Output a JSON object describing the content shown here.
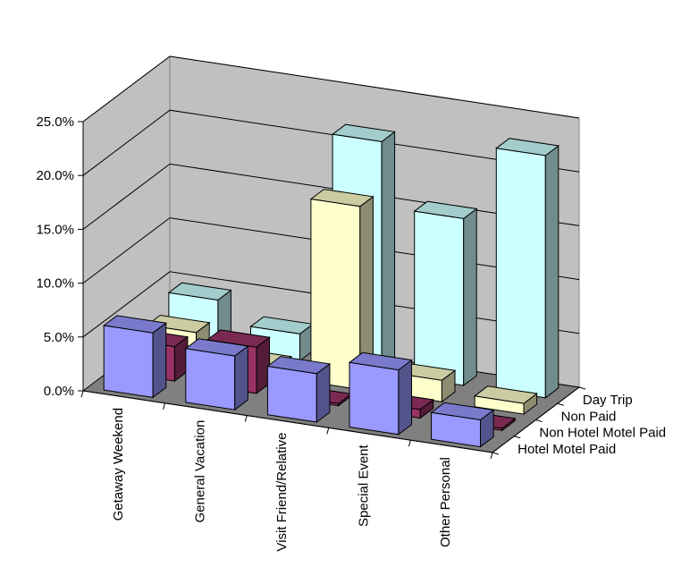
{
  "chart_data": {
    "type": "bar",
    "subtype": "3d-column",
    "categories": [
      "Getaway Weekend",
      "General Vacation",
      "Visit Friend/Relative",
      "Special Event",
      "Other Personal"
    ],
    "series": [
      {
        "name": "Hotel Motel Paid",
        "values": [
          6.0,
          5.0,
          4.5,
          6.0,
          2.5
        ],
        "color": "#9999ff"
      },
      {
        "name": "Non Hotel Motel Paid",
        "values": [
          3.2,
          4.3,
          0.2,
          0.8,
          0.2
        ],
        "color": "#993366"
      },
      {
        "name": "Non Paid",
        "values": [
          3.0,
          1.0,
          17.0,
          2.0,
          1.0
        ],
        "color": "#ffffcc"
      },
      {
        "name": "Day Trip",
        "values": [
          4.5,
          2.5,
          21.5,
          15.5,
          22.5
        ],
        "color": "#ccffff"
      }
    ],
    "y_ticks": [
      "0.0%",
      "5.0%",
      "10.0%",
      "15.0%",
      "20.0%",
      "25.0%"
    ],
    "ylim": [
      0,
      25
    ],
    "grid": true,
    "title": "",
    "xlabel": "",
    "ylabel": ""
  }
}
